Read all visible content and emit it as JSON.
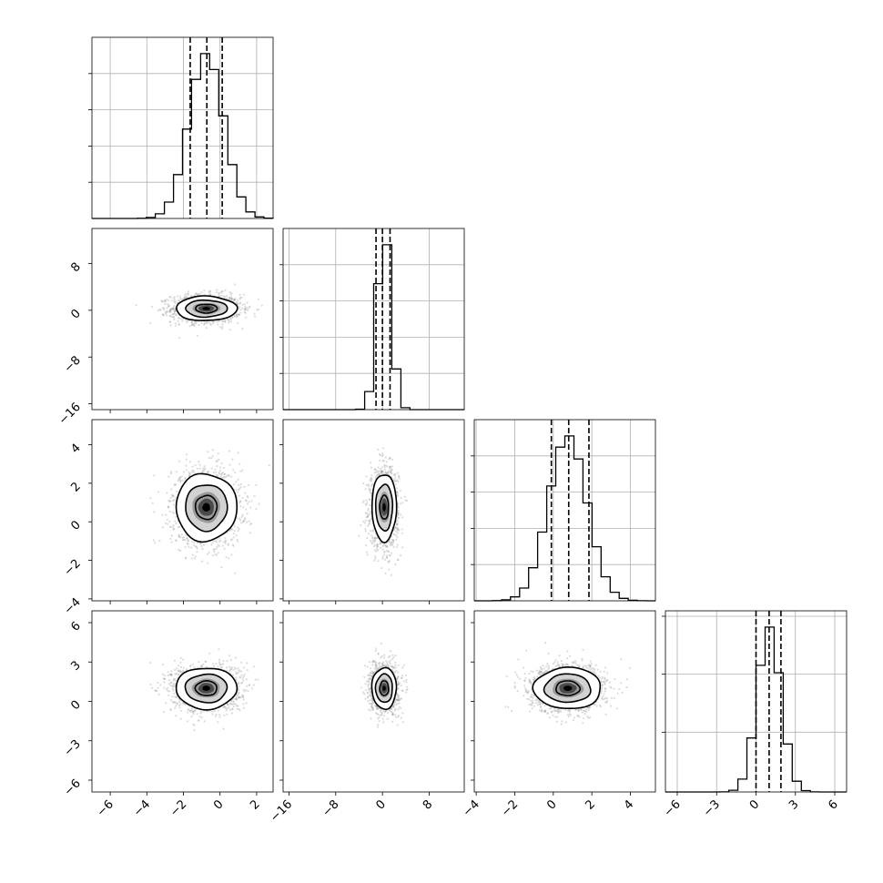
{
  "chart_data": {
    "type": "corner",
    "parameters": [
      {
        "tick_labels": [
          "−6",
          "−4",
          "−2",
          "0",
          "2"
        ],
        "ticks": [
          -6,
          -4,
          -2,
          0,
          2
        ],
        "range": [
          -7.0,
          2.9
        ],
        "mean": -0.75,
        "sd": 0.95,
        "quantiles": [
          -1.63,
          -0.72,
          0.12
        ]
      },
      {
        "tick_labels": [
          "−16",
          "−8",
          "0",
          "8"
        ],
        "ticks": [
          -16,
          -8,
          0,
          8
        ],
        "range": [
          -17.0,
          14.0
        ],
        "mean": 0.3,
        "sd": 1.2,
        "quantiles": [
          -1.1,
          0.0,
          1.3
        ]
      },
      {
        "tick_labels": [
          "−4",
          "−2",
          "0",
          "2",
          "4"
        ],
        "ticks": [
          -4,
          -2,
          0,
          2,
          4
        ],
        "range": [
          -4.1,
          5.3
        ],
        "mean": 0.75,
        "sd": 1.0,
        "quantiles": [
          -0.1,
          0.8,
          1.85
        ]
      },
      {
        "tick_labels": [
          "−6",
          "−3",
          "0",
          "3",
          "6"
        ],
        "ticks": [
          -6,
          -3,
          0,
          3,
          6
        ],
        "range": [
          -6.9,
          6.9
        ],
        "mean": 1.0,
        "sd": 0.9,
        "quantiles": [
          0.0,
          1.0,
          1.9
        ]
      }
    ],
    "pairs": [
      {
        "i": 1,
        "j": 0,
        "cx": -0.75,
        "cy": 0.3,
        "sx": 0.95,
        "sy": 1.2,
        "rho": 0.0
      },
      {
        "i": 2,
        "j": 0,
        "cx": -0.75,
        "cy": 0.75,
        "sx": 0.95,
        "sy": 1.0,
        "rho": 0.0
      },
      {
        "i": 2,
        "j": 1,
        "cx": 0.3,
        "cy": 0.75,
        "sx": 1.2,
        "sy": 1.0,
        "rho": 0.0
      },
      {
        "i": 3,
        "j": 0,
        "cx": -0.75,
        "cy": 1.0,
        "sx": 0.95,
        "sy": 0.9,
        "rho": 0.0
      },
      {
        "i": 3,
        "j": 1,
        "cx": 0.3,
        "cy": 1.0,
        "sx": 1.2,
        "sy": 0.9,
        "rho": 0.0
      },
      {
        "i": 3,
        "j": 2,
        "cx": 0.75,
        "cy": 1.0,
        "sx": 1.0,
        "sy": 0.9,
        "rho": 0.0
      }
    ],
    "grid": true,
    "quantile_lines": "dashed",
    "colors": {
      "points": "#9a9a9a",
      "density": "#000000",
      "grid": "#b0b0b0"
    }
  }
}
